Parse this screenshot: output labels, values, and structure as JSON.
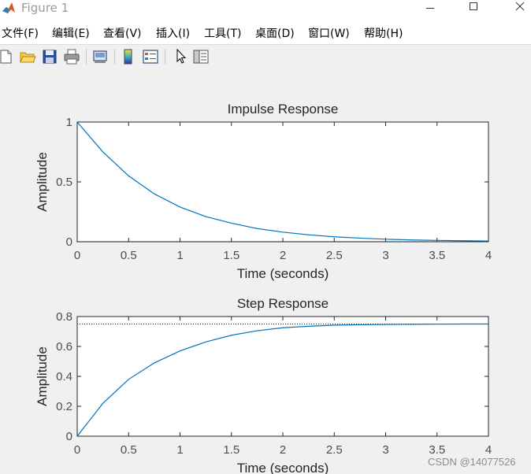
{
  "window": {
    "title": "Figure 1"
  },
  "menu": [
    "文件(F)",
    "编辑(E)",
    "查看(V)",
    "插入(I)",
    "工具(T)",
    "桌面(D)",
    "窗口(W)",
    "帮助(H)"
  ],
  "toolbar": {
    "icons": [
      "new-figure-icon",
      "open-file-icon",
      "save-icon",
      "print-icon",
      "link-plot-icon",
      "colorbar-icon",
      "legend-icon",
      "edit-plot-icon",
      "property-inspector-icon"
    ]
  },
  "watermark": "CSDN @14077526",
  "chart_data": [
    {
      "type": "line",
      "title": "Impulse Response",
      "xlabel": "Time (seconds)",
      "ylabel": "Amplitude",
      "xlim": [
        0,
        4
      ],
      "ylim": [
        0,
        1
      ],
      "x_ticks": [
        "0",
        "0.5",
        "1",
        "1.5",
        "2",
        "2.5",
        "3",
        "3.5",
        "4"
      ],
      "y_ticks": [
        "0",
        "0.5",
        "1"
      ],
      "grid": false,
      "series": [
        {
          "x": [
            0,
            0.25,
            0.5,
            0.75,
            1,
            1.25,
            1.5,
            1.75,
            2,
            2.25,
            2.5,
            2.75,
            3,
            3.25,
            3.5,
            3.75,
            4
          ],
          "y": [
            1.0,
            0.75,
            0.55,
            0.4,
            0.29,
            0.21,
            0.155,
            0.11,
            0.08,
            0.058,
            0.041,
            0.03,
            0.021,
            0.015,
            0.011,
            0.008,
            0.006
          ],
          "color": "#0072BD"
        }
      ],
      "reference_line": {
        "y": 0,
        "style": "dotted",
        "color": "#000000"
      }
    },
    {
      "type": "line",
      "title": "Step Response",
      "xlabel": "Time (seconds)",
      "ylabel": "Amplitude",
      "xlim": [
        0,
        4
      ],
      "ylim": [
        0,
        0.8
      ],
      "x_ticks": [
        "0",
        "0.5",
        "1",
        "1.5",
        "2",
        "2.5",
        "3",
        "3.5",
        "4"
      ],
      "y_ticks": [
        "0",
        "0.2",
        "0.4",
        "0.6",
        "0.8"
      ],
      "grid": false,
      "series": [
        {
          "x": [
            0,
            0.25,
            0.5,
            0.75,
            1,
            1.25,
            1.5,
            1.75,
            2,
            2.25,
            2.5,
            2.75,
            3,
            3.25,
            3.5,
            3.75,
            4
          ],
          "y": [
            0,
            0.22,
            0.38,
            0.49,
            0.57,
            0.63,
            0.675,
            0.705,
            0.725,
            0.735,
            0.742,
            0.745,
            0.747,
            0.748,
            0.749,
            0.75,
            0.75
          ],
          "color": "#0072BD"
        }
      ],
      "reference_line": {
        "y": 0.75,
        "style": "dotted",
        "color": "#000000"
      }
    }
  ]
}
